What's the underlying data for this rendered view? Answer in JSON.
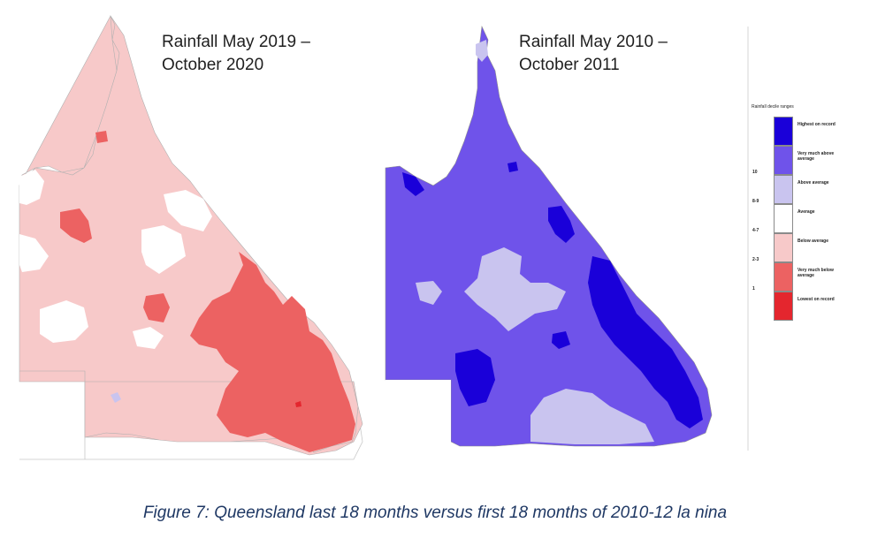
{
  "maps": {
    "left_title_line1": "Rainfall May 2019 –",
    "left_title_line2": "October 2020",
    "right_title_line1": "Rainfall May 2010 –",
    "right_title_line2": "October 2011"
  },
  "legend": {
    "title": "Rainfall decile ranges",
    "items": [
      {
        "rank": "",
        "label": "Highest on record",
        "color": "#1a00d9"
      },
      {
        "rank": "10",
        "label": "Very much above average",
        "color": "#6f53ea"
      },
      {
        "rank": "8-9",
        "label": "Above average",
        "color": "#c9c4ef"
      },
      {
        "rank": "4-7",
        "label": "Average",
        "color": "#ffffff"
      },
      {
        "rank": "2-3",
        "label": "Below average",
        "color": "#f7c9c9"
      },
      {
        "rank": "1",
        "label": "Very much below average",
        "color": "#ec6262"
      },
      {
        "rank": "",
        "label": "Lowest on record",
        "color": "#e4262e"
      }
    ]
  },
  "caption": "Figure 7: Queensland last 18 months  versus first 18 months of 2010-12 la nina"
}
